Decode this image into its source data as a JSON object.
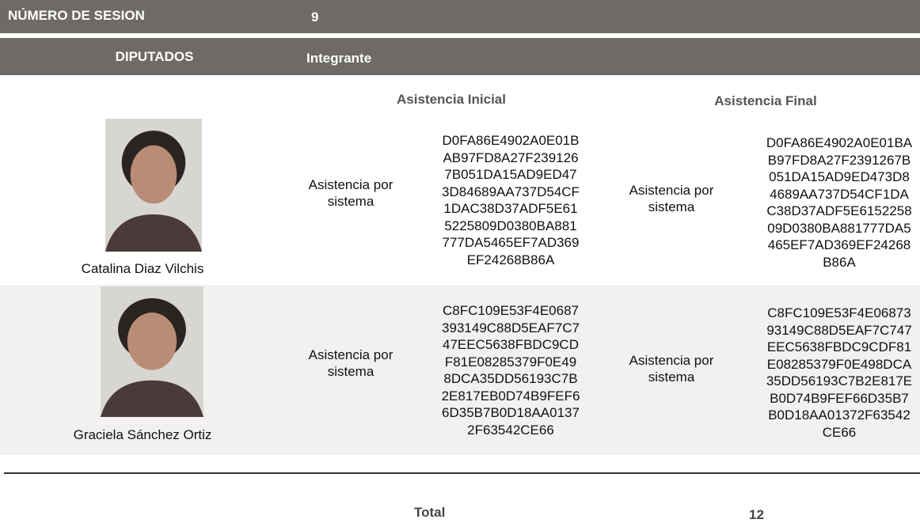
{
  "header": {
    "session_label": "NÚMERO DE SESION",
    "session_number": "9",
    "deputies_label": "DIPUTADOS",
    "member_label": "Integrante"
  },
  "columns": {
    "initial": "Asistencia Inicial",
    "final": "Asistencia Final"
  },
  "rows": [
    {
      "name": "Catalina Diaz Vilchis",
      "initial": {
        "type": "Asistencia por sistema",
        "hash_lines": [
          "D0FA86E4902A0E01B",
          "AB97FD8A27F239126",
          "7B051DA15AD9ED47",
          "3D84689AA737D54CF",
          "1DAC38D37ADF5E61",
          "5225809D0380BA881",
          "777DA5465EF7AD369",
          "EF24268B86A"
        ]
      },
      "final": {
        "type": "Asistencia por sistema",
        "hash_lines": [
          "D0FA86E4902A0E01BA",
          "B97FD8A27F2391267B",
          "051DA15AD9ED473D8",
          "4689AA737D54CF1DA",
          "C38D37ADF5E6152258",
          "09D0380BA881777DA5",
          "465EF7AD369EF24268",
          "B86A"
        ]
      }
    },
    {
      "name": "Graciela Sánchez Ortiz",
      "initial": {
        "type": "Asistencia por sistema",
        "hash_lines": [
          "C8FC109E53F4E0687",
          "393149C88D5EAF7C7",
          "47EEC5638FBDC9CD",
          "F81E08285379F0E49",
          "8DCA35DD56193C7B",
          "2E817EB0D74B9FEF6",
          "6D35B7B0D18AA0137",
          "2F63542CE66"
        ]
      },
      "final": {
        "type": "Asistencia por sistema",
        "hash_lines": [
          "C8FC109E53F4E06873",
          "93149C88D5EAF7C747",
          "EEC5638FBDC9CDF81",
          "E08285379F0E498DCA",
          "35DD56193C7B2E817E",
          "B0D74B9FEF66D35B7",
          "B0D18AA01372F63542",
          "CE66"
        ]
      }
    }
  ],
  "footer": {
    "total_label": "Total",
    "total_value": "12"
  }
}
